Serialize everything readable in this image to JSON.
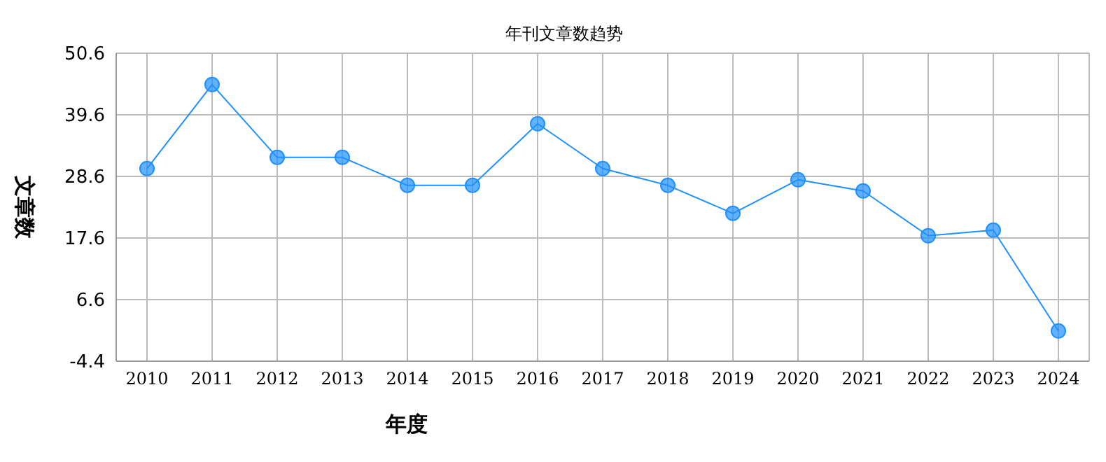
{
  "chart_data": {
    "type": "line",
    "title": "年刊文章数趋势",
    "xlabel": "年度",
    "ylabel": "文章数",
    "categories": [
      "2010",
      "2011",
      "2012",
      "2013",
      "2014",
      "2015",
      "2016",
      "2017",
      "2018",
      "2019",
      "2020",
      "2021",
      "2022",
      "2023",
      "2024"
    ],
    "series": [
      {
        "color": "#1e90ff",
        "values": [
          30,
          45,
          32,
          32,
          27,
          27,
          38,
          30,
          27,
          22,
          28,
          26,
          18,
          19,
          1
        ]
      }
    ],
    "ylim": [
      -4.4,
      50.6
    ],
    "yticks": [
      -4.4,
      6.6,
      17.6,
      28.6,
      39.6,
      50.6
    ],
    "grid": true,
    "marker": "circle",
    "line_style": "solid"
  }
}
